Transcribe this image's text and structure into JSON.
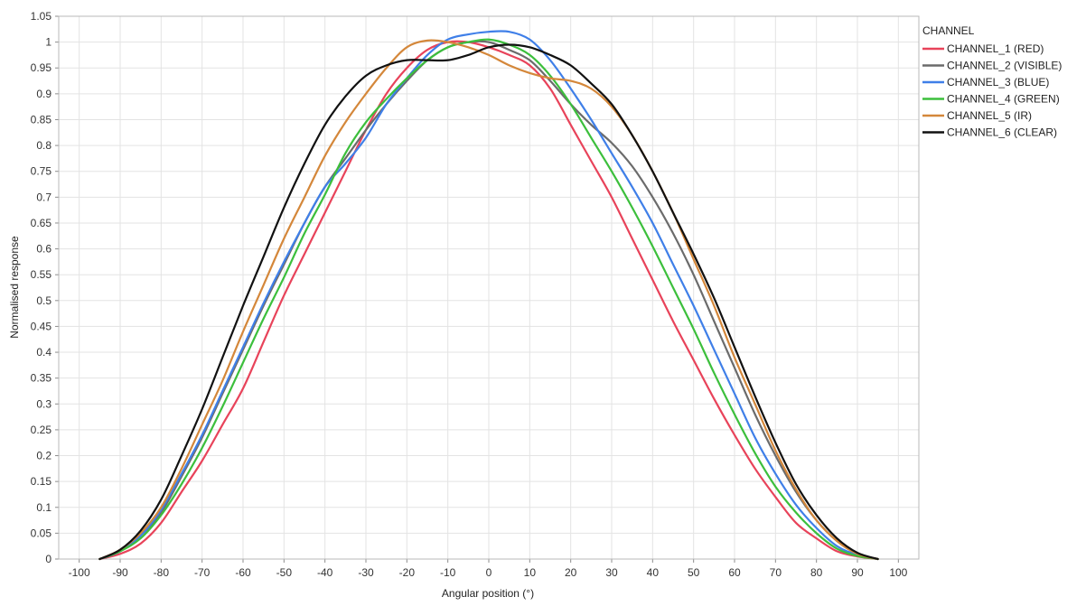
{
  "chart_data": {
    "type": "line",
    "title": "",
    "xlabel": "Angular position (°)",
    "ylabel": "Normalised response",
    "xlim": [
      -105,
      105
    ],
    "ylim": [
      0,
      1.05
    ],
    "x_ticks": [
      -100,
      -90,
      -80,
      -70,
      -60,
      -50,
      -40,
      -30,
      -20,
      -10,
      0,
      10,
      20,
      30,
      40,
      50,
      60,
      70,
      80,
      90,
      100
    ],
    "y_ticks": [
      0,
      0.05,
      0.1,
      0.15,
      0.2,
      0.25,
      0.3,
      0.35,
      0.4,
      0.45,
      0.5,
      0.55,
      0.6,
      0.65,
      0.7,
      0.75,
      0.8,
      0.85,
      0.9,
      0.95,
      1,
      1.05
    ],
    "grid": true,
    "legend": {
      "title": "CHANNEL",
      "position": "right"
    },
    "series": [
      {
        "name": "CHANNEL_1 (RED)",
        "color": "#e8435a",
        "x": [
          -95,
          -90,
          -85,
          -80,
          -75,
          -70,
          -65,
          -60,
          -55,
          -50,
          -45,
          -40,
          -35,
          -30,
          -25,
          -20,
          -15,
          -10,
          -5,
          0,
          5,
          10,
          15,
          20,
          25,
          30,
          35,
          40,
          45,
          50,
          55,
          60,
          65,
          70,
          75,
          80,
          85,
          90,
          95
        ],
        "y": [
          0,
          0.01,
          0.03,
          0.07,
          0.13,
          0.19,
          0.26,
          0.33,
          0.42,
          0.51,
          0.59,
          0.67,
          0.75,
          0.83,
          0.9,
          0.95,
          0.985,
          1.0,
          1.0,
          0.99,
          0.975,
          0.955,
          0.91,
          0.84,
          0.77,
          0.7,
          0.62,
          0.54,
          0.46,
          0.385,
          0.31,
          0.24,
          0.175,
          0.12,
          0.07,
          0.04,
          0.015,
          0.005,
          0
        ]
      },
      {
        "name": "CHANNEL_2 (VISIBLE)",
        "color": "#6b6b6b",
        "x": [
          -95,
          -90,
          -85,
          -80,
          -75,
          -70,
          -65,
          -60,
          -55,
          -50,
          -45,
          -40,
          -35,
          -30,
          -25,
          -20,
          -15,
          -10,
          -5,
          0,
          5,
          10,
          15,
          20,
          25,
          30,
          35,
          40,
          45,
          50,
          55,
          60,
          65,
          70,
          75,
          80,
          85,
          90,
          95
        ],
        "y": [
          0,
          0.015,
          0.045,
          0.09,
          0.16,
          0.235,
          0.32,
          0.405,
          0.49,
          0.57,
          0.65,
          0.72,
          0.775,
          0.83,
          0.88,
          0.925,
          0.965,
          0.99,
          1.0,
          1.0,
          0.985,
          0.965,
          0.925,
          0.88,
          0.84,
          0.805,
          0.76,
          0.7,
          0.63,
          0.55,
          0.46,
          0.37,
          0.28,
          0.2,
          0.13,
          0.075,
          0.035,
          0.01,
          0
        ]
      },
      {
        "name": "CHANNEL_3 (BLUE)",
        "color": "#3f7fe8",
        "x": [
          -95,
          -90,
          -85,
          -80,
          -75,
          -70,
          -65,
          -60,
          -55,
          -50,
          -45,
          -40,
          -35,
          -30,
          -25,
          -20,
          -15,
          -10,
          -5,
          0,
          5,
          10,
          15,
          20,
          25,
          30,
          35,
          40,
          45,
          50,
          55,
          60,
          65,
          70,
          75,
          80,
          85,
          90,
          95
        ],
        "y": [
          0,
          0.015,
          0.045,
          0.095,
          0.165,
          0.24,
          0.325,
          0.41,
          0.495,
          0.575,
          0.65,
          0.72,
          0.765,
          0.815,
          0.88,
          0.93,
          0.975,
          1.005,
          1.015,
          1.02,
          1.02,
          1.005,
          0.965,
          0.91,
          0.85,
          0.785,
          0.72,
          0.65,
          0.57,
          0.49,
          0.405,
          0.32,
          0.235,
          0.165,
          0.105,
          0.06,
          0.025,
          0.008,
          0
        ]
      },
      {
        "name": "CHANNEL_4 (GREEN)",
        "color": "#3cbf3c",
        "x": [
          -95,
          -90,
          -85,
          -80,
          -75,
          -70,
          -65,
          -60,
          -55,
          -50,
          -45,
          -40,
          -35,
          -30,
          -25,
          -20,
          -15,
          -10,
          -5,
          0,
          5,
          10,
          15,
          20,
          25,
          30,
          35,
          40,
          45,
          50,
          55,
          60,
          65,
          70,
          75,
          80,
          85,
          90,
          95
        ],
        "y": [
          0,
          0.015,
          0.04,
          0.085,
          0.145,
          0.215,
          0.295,
          0.38,
          0.465,
          0.545,
          0.63,
          0.705,
          0.785,
          0.845,
          0.89,
          0.93,
          0.965,
          0.99,
          1.0,
          1.005,
          0.995,
          0.975,
          0.935,
          0.88,
          0.815,
          0.75,
          0.68,
          0.605,
          0.525,
          0.445,
          0.36,
          0.28,
          0.205,
          0.14,
          0.09,
          0.05,
          0.02,
          0.006,
          0
        ]
      },
      {
        "name": "CHANNEL_5 (IR)",
        "color": "#d4873a",
        "x": [
          -95,
          -90,
          -85,
          -80,
          -75,
          -70,
          -65,
          -60,
          -55,
          -50,
          -45,
          -40,
          -35,
          -30,
          -25,
          -20,
          -15,
          -10,
          -5,
          0,
          5,
          10,
          15,
          20,
          25,
          30,
          35,
          40,
          45,
          50,
          55,
          60,
          65,
          70,
          75,
          80,
          85,
          90,
          95
        ],
        "y": [
          0,
          0.018,
          0.05,
          0.1,
          0.175,
          0.26,
          0.345,
          0.44,
          0.53,
          0.62,
          0.7,
          0.78,
          0.845,
          0.9,
          0.95,
          0.99,
          1.003,
          1.0,
          0.99,
          0.975,
          0.955,
          0.94,
          0.93,
          0.925,
          0.91,
          0.875,
          0.82,
          0.75,
          0.67,
          0.58,
          0.49,
          0.39,
          0.3,
          0.21,
          0.135,
          0.075,
          0.035,
          0.01,
          0
        ]
      },
      {
        "name": "CHANNEL_6 (CLEAR)",
        "color": "#111111",
        "x": [
          -95,
          -90,
          -85,
          -80,
          -75,
          -70,
          -65,
          -60,
          -55,
          -50,
          -45,
          -40,
          -35,
          -30,
          -25,
          -20,
          -15,
          -10,
          -5,
          0,
          5,
          10,
          15,
          20,
          25,
          30,
          35,
          40,
          45,
          50,
          55,
          60,
          65,
          70,
          75,
          80,
          85,
          90,
          95
        ],
        "y": [
          0,
          0.018,
          0.055,
          0.115,
          0.2,
          0.29,
          0.39,
          0.49,
          0.585,
          0.68,
          0.765,
          0.84,
          0.895,
          0.935,
          0.955,
          0.965,
          0.965,
          0.965,
          0.975,
          0.99,
          0.995,
          0.99,
          0.975,
          0.955,
          0.92,
          0.88,
          0.82,
          0.75,
          0.67,
          0.59,
          0.505,
          0.41,
          0.315,
          0.225,
          0.145,
          0.085,
          0.04,
          0.012,
          0
        ]
      }
    ]
  }
}
